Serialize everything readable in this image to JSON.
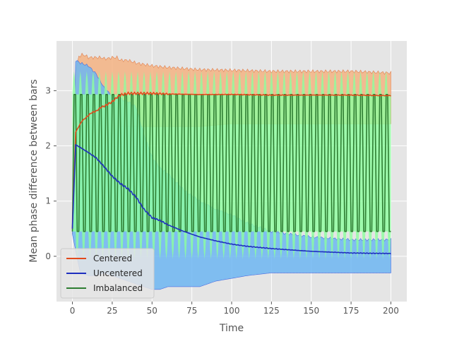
{
  "chart_data": {
    "type": "line",
    "title": "",
    "xlabel": "Time",
    "ylabel": "Mean phase difference between bars",
    "xlim": [
      -10,
      210
    ],
    "ylim": [
      -0.82,
      3.9
    ],
    "xticks": [
      0,
      25,
      50,
      75,
      100,
      125,
      150,
      175,
      200
    ],
    "yticks": [
      0,
      1,
      2,
      3
    ],
    "grid": true,
    "background": "#e5e5e5",
    "legend_position": "lower left",
    "series": [
      {
        "name": "Centered",
        "color": "#e24a1c",
        "band_color": "#f5b383",
        "x": [
          0,
          2,
          4,
          6,
          8,
          10,
          12,
          15,
          18,
          20,
          22,
          25,
          28,
          30,
          35,
          40,
          50,
          60,
          80,
          100,
          125,
          150,
          175,
          200
        ],
        "y": [
          0.5,
          2.25,
          2.35,
          2.45,
          2.5,
          2.55,
          2.6,
          2.63,
          2.7,
          2.72,
          2.75,
          2.8,
          2.88,
          2.92,
          2.95,
          2.95,
          2.95,
          2.94,
          2.93,
          2.93,
          2.92,
          2.92,
          2.92,
          2.91
        ],
        "upper": [
          0.6,
          3.3,
          3.62,
          3.65,
          3.64,
          3.6,
          3.6,
          3.6,
          3.6,
          3.58,
          3.58,
          3.6,
          3.6,
          3.55,
          3.55,
          3.5,
          3.45,
          3.42,
          3.38,
          3.37,
          3.35,
          3.35,
          3.35,
          3.32
        ],
        "lower": [
          0.4,
          1.6,
          1.5,
          1.55,
          1.6,
          1.7,
          1.8,
          1.9,
          2.0,
          2.05,
          2.1,
          2.2,
          2.3,
          2.35,
          2.35,
          2.35,
          2.35,
          2.35,
          2.35,
          2.4,
          2.4,
          2.4,
          2.4,
          2.4
        ]
      },
      {
        "name": "Uncentered",
        "color": "#1f2fbf",
        "band_color": "#6db6f2",
        "x": [
          0,
          2,
          5,
          10,
          15,
          20,
          25,
          30,
          35,
          40,
          45,
          50,
          55,
          60,
          70,
          80,
          90,
          100,
          110,
          125,
          150,
          175,
          200
        ],
        "y": [
          0.5,
          2.02,
          1.97,
          1.88,
          1.78,
          1.62,
          1.45,
          1.32,
          1.22,
          1.07,
          0.85,
          0.7,
          0.65,
          0.57,
          0.45,
          0.35,
          0.28,
          0.22,
          0.18,
          0.14,
          0.09,
          0.06,
          0.05
        ],
        "upper": [
          0.6,
          3.55,
          3.5,
          3.45,
          3.3,
          3.05,
          2.9,
          2.85,
          2.8,
          2.7,
          2.2,
          1.8,
          1.6,
          1.5,
          1.2,
          1.0,
          0.85,
          0.75,
          0.6,
          0.45,
          0.35,
          0.3,
          0.3
        ],
        "lower": [
          0.4,
          0.1,
          -0.3,
          -0.35,
          -0.35,
          -0.3,
          -0.35,
          -0.4,
          -0.45,
          -0.5,
          -0.55,
          -0.6,
          -0.6,
          -0.55,
          -0.55,
          -0.55,
          -0.45,
          -0.4,
          -0.35,
          -0.3,
          -0.3,
          -0.3,
          -0.3
        ]
      },
      {
        "name": "Imbalanced",
        "color": "#2e7d32",
        "band_color": "#8cff9e",
        "oscillation_period": 4,
        "high": 2.93,
        "low": 0.45,
        "x_start": 0,
        "x_end": 200,
        "upper_band": 3.35,
        "lower_band": -0.05
      }
    ]
  }
}
